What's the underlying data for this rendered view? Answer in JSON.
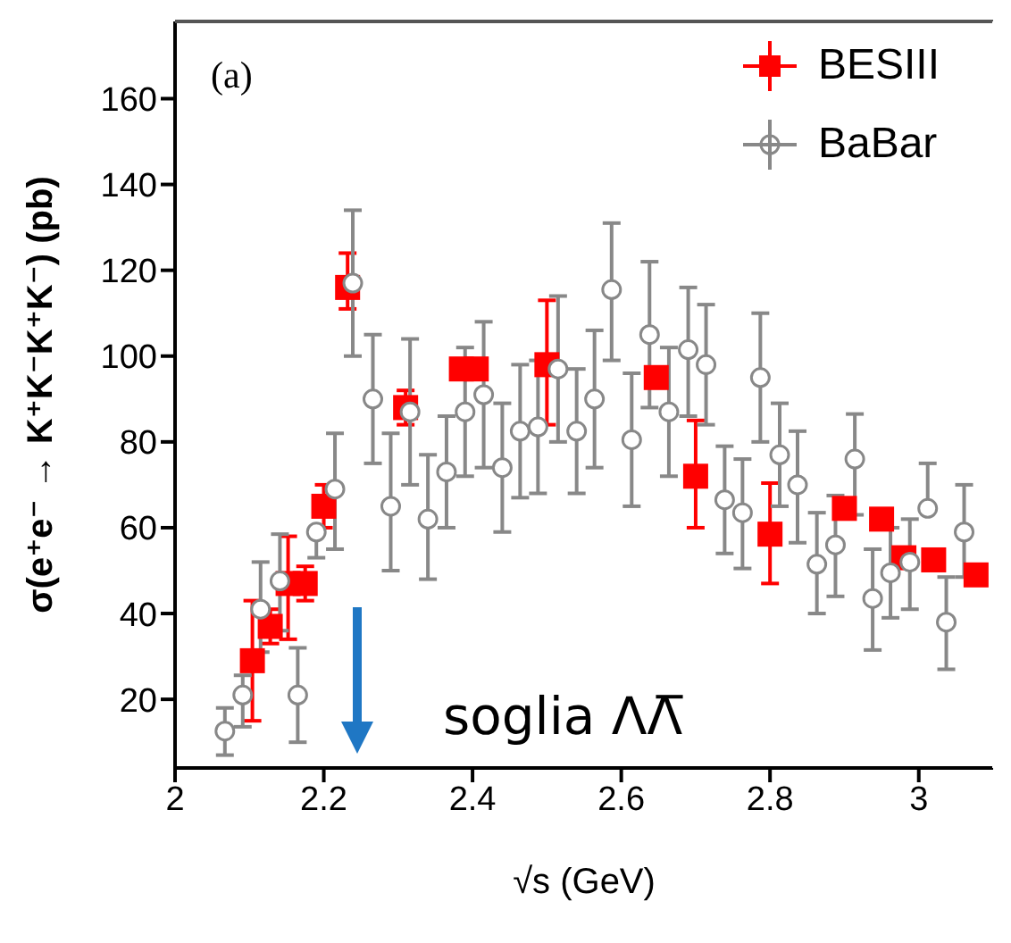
{
  "chart_data": {
    "type": "scatter",
    "xlabel": "√s (GeV)",
    "ylabel": "σ(e⁺e⁻ → K⁺K⁻K⁺K⁻) (pb)",
    "xlim": [
      2,
      3.1
    ],
    "xticks": [
      2,
      2.2,
      2.4,
      2.6,
      2.8,
      3
    ],
    "ylim": [
      4,
      178
    ],
    "yticks": [
      20,
      40,
      60,
      80,
      100,
      120,
      140,
      160
    ],
    "grid": false,
    "legend": "top right",
    "annotations": [
      "(a)",
      "soglia ΛΛ̅"
    ],
    "series": [
      {
        "name": "BESIII",
        "color": "#ff0000",
        "marker": "square",
        "x": [
          2.104,
          2.128,
          2.152,
          2.175,
          2.2,
          2.232,
          2.31,
          2.385,
          2.405,
          2.5,
          2.647,
          2.7,
          2.8,
          2.9,
          2.95,
          2.98,
          3.02,
          3.077
        ],
        "values": [
          29,
          37,
          47,
          47,
          65,
          116,
          88,
          97,
          97,
          98,
          95,
          72,
          58.5,
          64.5,
          62,
          53,
          52.5,
          49
        ],
        "errors": [
          [
            15,
            43
          ],
          [
            33,
            41
          ],
          [
            34,
            58
          ],
          [
            43,
            51
          ],
          [
            60,
            70
          ],
          [
            111,
            124
          ],
          [
            84,
            92
          ],
          null,
          null,
          [
            84,
            113
          ],
          null,
          [
            60,
            85
          ],
          [
            47,
            70.4
          ],
          null,
          null,
          null,
          null,
          null
        ]
      },
      {
        "name": "BaBar",
        "color": "#888888",
        "marker": "circle",
        "x": [
          2.067,
          2.091,
          2.115,
          2.141,
          2.165,
          2.19,
          2.215,
          2.239,
          2.266,
          2.29,
          2.316,
          2.34,
          2.365,
          2.39,
          2.415,
          2.44,
          2.464,
          2.488,
          2.515,
          2.54,
          2.564,
          2.587,
          2.614,
          2.638,
          2.664,
          2.69,
          2.714,
          2.739,
          2.763,
          2.787,
          2.813,
          2.837,
          2.863,
          2.888,
          2.914,
          2.938,
          2.962,
          2.988,
          3.012,
          3.037,
          3.061
        ],
        "values": [
          12.6,
          21,
          41,
          47.6,
          21,
          59,
          69,
          117,
          90,
          65,
          87,
          62,
          73,
          87,
          91,
          74,
          82.5,
          83.5,
          97,
          82.5,
          90,
          115.5,
          80.5,
          105,
          87,
          101.5,
          98,
          66.5,
          63.5,
          95,
          77,
          70,
          51.5,
          56,
          76,
          43.5,
          49.5,
          52,
          64.5,
          38,
          59
        ],
        "errors": [
          [
            7,
            18
          ],
          [
            13.6,
            25.6
          ],
          [
            31,
            52
          ],
          [
            36,
            58.5
          ],
          [
            10,
            32
          ],
          [
            53,
            59
          ],
          [
            55,
            82
          ],
          [
            100,
            134
          ],
          [
            75,
            105
          ],
          [
            50,
            82
          ],
          [
            70,
            104
          ],
          [
            48,
            77
          ],
          [
            60,
            86
          ],
          [
            72,
            102
          ],
          [
            74,
            108
          ],
          [
            59,
            89
          ],
          [
            67,
            98
          ],
          [
            68,
            99
          ],
          [
            80,
            114
          ],
          [
            68,
            97
          ],
          [
            74,
            106
          ],
          [
            99,
            131
          ],
          [
            65,
            96
          ],
          [
            88,
            122
          ],
          [
            72,
            102
          ],
          [
            86,
            116
          ],
          [
            84,
            112
          ],
          [
            54,
            79
          ],
          [
            50.5,
            76
          ],
          [
            80,
            110
          ],
          [
            65,
            89
          ],
          [
            56.5,
            82.5
          ],
          [
            40,
            63.5
          ],
          [
            44,
            67.5
          ],
          [
            63,
            86.5
          ],
          [
            31.5,
            55
          ],
          [
            39,
            60
          ],
          [
            41,
            62
          ],
          [
            64.5,
            75
          ],
          [
            27,
            48.5
          ],
          [
            48.5,
            70
          ]
        ]
      }
    ]
  }
}
